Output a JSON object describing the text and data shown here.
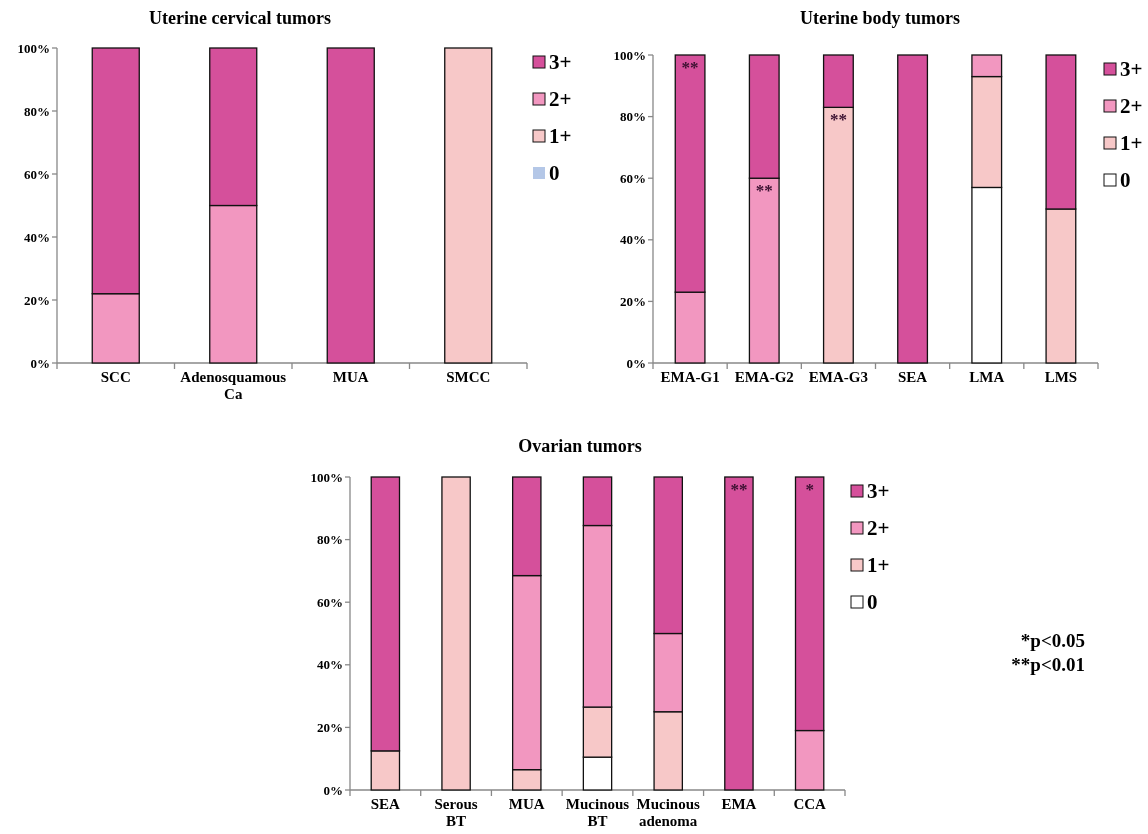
{
  "chart_data": [
    {
      "type": "bar",
      "title": "Uterine cervical tumors",
      "stacked": true,
      "categories": [
        "SCC",
        "Adenosquamous\nCa",
        "MUA",
        "SMCC"
      ],
      "series": [
        {
          "name": "0",
          "color": "#b4c7e7",
          "values": [
            0,
            0,
            0,
            0
          ]
        },
        {
          "name": "1+",
          "color": "#f7c8c8",
          "values": [
            0,
            0,
            0,
            100
          ]
        },
        {
          "name": "2+",
          "color": "#f297c0",
          "values": [
            22,
            50,
            0,
            0
          ]
        },
        {
          "name": "3+",
          "color": "#d5509b",
          "values": [
            78,
            50,
            100,
            0
          ]
        }
      ],
      "ylim": [
        0,
        100
      ],
      "yticks": [
        {
          "value": 0,
          "label": "0%"
        },
        {
          "value": 20,
          "label": "20%"
        },
        {
          "value": 40,
          "label": "40%"
        },
        {
          "value": 60,
          "label": "60%"
        },
        {
          "value": 80,
          "label": "80%"
        },
        {
          "value": 100,
          "label": "100%"
        }
      ],
      "legend": "right"
    },
    {
      "type": "bar",
      "title": "Uterine body tumors",
      "stacked": true,
      "categories": [
        "EMA-G1",
        "EMA-G2",
        "EMA-G3",
        "SEA",
        "LMA",
        "LMS"
      ],
      "series": [
        {
          "name": "0",
          "color": "#ffffff",
          "values": [
            0,
            0,
            0,
            0,
            57,
            0
          ]
        },
        {
          "name": "1+",
          "color": "#f7c8c8",
          "values": [
            0,
            0,
            83,
            0,
            36,
            50
          ]
        },
        {
          "name": "2+",
          "color": "#f297c0",
          "values": [
            23,
            60,
            0,
            0,
            7,
            0
          ]
        },
        {
          "name": "3+",
          "color": "#d5509b",
          "values": [
            77,
            40,
            17,
            100,
            0,
            50
          ]
        }
      ],
      "ylim": [
        0,
        100
      ],
      "yticks": [
        {
          "value": 0,
          "label": "0%"
        },
        {
          "value": 20,
          "label": "20%"
        },
        {
          "value": 40,
          "label": "40%"
        },
        {
          "value": 60,
          "label": "60%"
        },
        {
          "value": 80,
          "label": "80%"
        },
        {
          "value": 100,
          "label": "100%"
        }
      ],
      "legend": "right",
      "annotations": [
        {
          "text": "**",
          "x": "EMA-G1",
          "y": 100
        },
        {
          "text": "**",
          "x": "EMA-G2",
          "y": 60
        },
        {
          "text": "**",
          "x": "EMA-G3",
          "y": 83
        }
      ]
    },
    {
      "type": "bar",
      "title": "Ovarian tumors",
      "stacked": true,
      "categories": [
        "SEA",
        "Serous\nBT",
        "MUA",
        "Mucinous\nBT",
        "Mucinous\nadenoma",
        "EMA",
        "CCA"
      ],
      "series": [
        {
          "name": "0",
          "color": "#ffffff",
          "values": [
            0,
            0,
            0,
            10.5,
            0,
            0,
            0
          ]
        },
        {
          "name": "1+",
          "color": "#f7c8c8",
          "values": [
            12.5,
            100,
            6.5,
            16,
            25,
            0,
            0
          ]
        },
        {
          "name": "2+",
          "color": "#f297c0",
          "values": [
            0,
            0,
            62,
            58,
            25,
            0,
            19
          ]
        },
        {
          "name": "3+",
          "color": "#d5509b",
          "values": [
            87.5,
            0,
            31.5,
            15.5,
            50,
            100,
            81
          ]
        }
      ],
      "ylim": [
        0,
        100
      ],
      "yticks": [
        {
          "value": 0,
          "label": "0%"
        },
        {
          "value": 20,
          "label": "20%"
        },
        {
          "value": 40,
          "label": "40%"
        },
        {
          "value": 60,
          "label": "60%"
        },
        {
          "value": 80,
          "label": "80%"
        },
        {
          "value": 100,
          "label": "100%"
        }
      ],
      "legend": "right",
      "annotations": [
        {
          "text": "**",
          "x": "EMA",
          "y": 100
        },
        {
          "text": "*",
          "x": "CCA",
          "y": 100
        },
        "*p<0.05",
        "**p<0.01"
      ]
    }
  ]
}
